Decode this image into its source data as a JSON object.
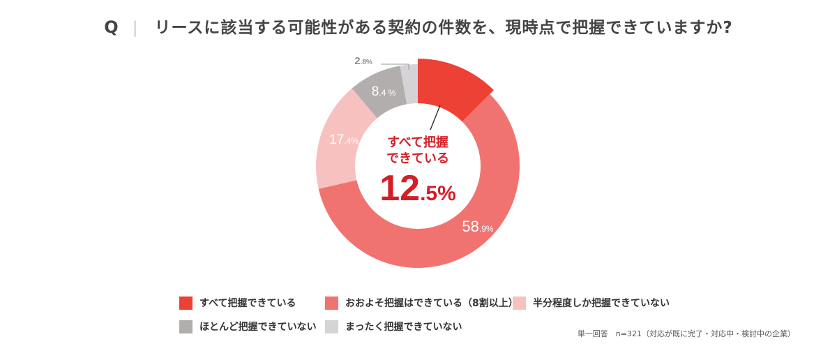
{
  "question": {
    "prefix": "Q",
    "separator": "|",
    "text": "リースに該当する可能性がある契約の件数を、現時点で把握できていますか?"
  },
  "center": {
    "line1": "すべて把握",
    "line2": "できている",
    "value_int": "12",
    "value_dec": ".5%"
  },
  "footnote": "単一回答　n=321（対応が既に完了・対応中・検討中の企業）",
  "chart_data": {
    "type": "pie",
    "title": "",
    "slices": [
      {
        "name": "すべて把握できている",
        "value": 12.5,
        "color": "#ec4134",
        "label_int": "",
        "label_dec": ""
      },
      {
        "name": "おおよそ把握はできている（8割以上）",
        "value": 58.9,
        "color": "#f17370",
        "label_int": "58",
        "label_dec": ".9%"
      },
      {
        "name": "半分程度しか把握できていない",
        "value": 17.4,
        "color": "#f7c1c0",
        "label_int": "17",
        "label_dec": ".4%"
      },
      {
        "name": "ほとんど把握できていない",
        "value": 8.4,
        "color": "#b3aeae",
        "label_int": "8",
        "label_dec": ".4 %"
      },
      {
        "name": "まったく把握できていない",
        "value": 2.8,
        "color": "#d5d3d5",
        "label_int": "2",
        "label_dec": ".8%"
      }
    ],
    "legend_position": "bottom"
  }
}
